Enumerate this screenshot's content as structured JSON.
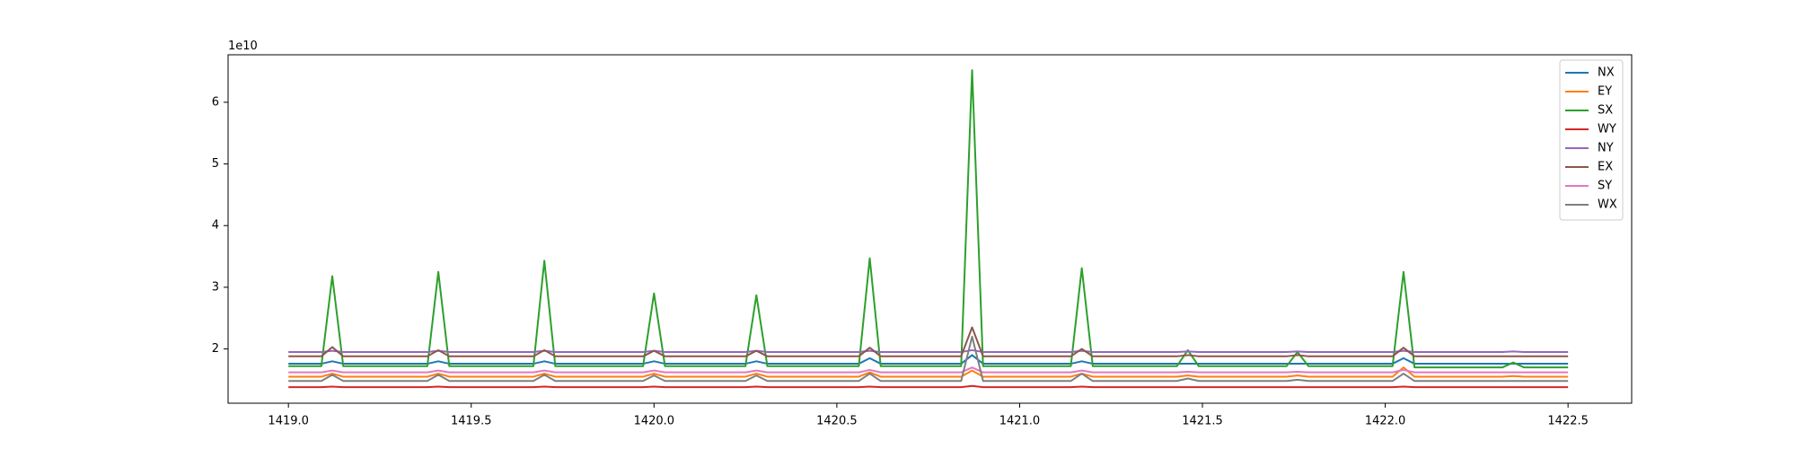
{
  "chart_data": {
    "type": "line",
    "y_offset_label": "1e10",
    "x": [
      1419.0,
      1419.09,
      1419.12,
      1419.15,
      1419.38,
      1419.41,
      1419.44,
      1419.67,
      1419.7,
      1419.73,
      1419.97,
      1420.0,
      1420.03,
      1420.25,
      1420.28,
      1420.31,
      1420.56,
      1420.59,
      1420.62,
      1420.84,
      1420.87,
      1420.9,
      1421.14,
      1421.17,
      1421.2,
      1421.43,
      1421.46,
      1421.49,
      1421.73,
      1421.76,
      1421.79,
      1422.02,
      1422.05,
      1422.08,
      1422.32,
      1422.35,
      1422.38,
      1422.5
    ],
    "series": [
      {
        "name": "NX",
        "color": "#1f77b4",
        "values": [
          1.76,
          1.76,
          1.8,
          1.76,
          1.76,
          1.8,
          1.76,
          1.76,
          1.8,
          1.76,
          1.76,
          1.8,
          1.76,
          1.76,
          1.8,
          1.76,
          1.76,
          1.85,
          1.76,
          1.76,
          1.9,
          1.76,
          1.76,
          1.8,
          1.76,
          1.76,
          1.76,
          1.76,
          1.76,
          1.76,
          1.76,
          1.76,
          1.85,
          1.76,
          1.76,
          1.76,
          1.76,
          1.76
        ]
      },
      {
        "name": "EY",
        "color": "#ff7f0e",
        "values": [
          1.55,
          1.55,
          1.6,
          1.55,
          1.55,
          1.6,
          1.55,
          1.55,
          1.6,
          1.55,
          1.55,
          1.6,
          1.55,
          1.55,
          1.6,
          1.55,
          1.55,
          1.62,
          1.55,
          1.55,
          1.65,
          1.55,
          1.55,
          1.6,
          1.55,
          1.55,
          1.57,
          1.55,
          1.55,
          1.57,
          1.55,
          1.55,
          1.7,
          1.55,
          1.55,
          1.56,
          1.55,
          1.55
        ]
      },
      {
        "name": "SX",
        "color": "#2ca02c",
        "values": [
          1.72,
          1.72,
          3.18,
          1.72,
          1.72,
          3.25,
          1.72,
          1.72,
          3.43,
          1.72,
          1.72,
          2.9,
          1.72,
          1.72,
          2.87,
          1.72,
          1.72,
          3.47,
          1.72,
          1.72,
          6.52,
          1.72,
          1.72,
          3.31,
          1.72,
          1.72,
          1.98,
          1.72,
          1.72,
          1.95,
          1.72,
          1.72,
          3.25,
          1.7,
          1.7,
          1.78,
          1.7,
          1.7
        ]
      },
      {
        "name": "WY",
        "color": "#d62728",
        "values": [
          1.38,
          1.38,
          1.39,
          1.38,
          1.38,
          1.39,
          1.38,
          1.38,
          1.39,
          1.38,
          1.38,
          1.39,
          1.38,
          1.38,
          1.39,
          1.38,
          1.38,
          1.39,
          1.38,
          1.38,
          1.4,
          1.38,
          1.38,
          1.39,
          1.38,
          1.38,
          1.38,
          1.38,
          1.38,
          1.38,
          1.38,
          1.38,
          1.39,
          1.38,
          1.38,
          1.38,
          1.38,
          1.38
        ]
      },
      {
        "name": "NY",
        "color": "#9467bd",
        "values": [
          1.95,
          1.95,
          1.97,
          1.95,
          1.95,
          1.97,
          1.95,
          1.95,
          1.97,
          1.95,
          1.95,
          1.97,
          1.95,
          1.95,
          1.97,
          1.95,
          1.95,
          1.97,
          1.95,
          1.95,
          1.98,
          1.95,
          1.95,
          1.97,
          1.95,
          1.95,
          1.96,
          1.95,
          1.95,
          1.96,
          1.95,
          1.95,
          1.97,
          1.95,
          1.95,
          1.96,
          1.95,
          1.95
        ]
      },
      {
        "name": "EX",
        "color": "#8c564b",
        "values": [
          1.88,
          1.88,
          2.03,
          1.88,
          1.88,
          1.98,
          1.88,
          1.88,
          1.98,
          1.88,
          1.88,
          1.97,
          1.88,
          1.88,
          1.97,
          1.88,
          1.88,
          2.02,
          1.88,
          1.88,
          2.35,
          1.88,
          1.88,
          2.0,
          1.88,
          1.88,
          1.9,
          1.88,
          1.88,
          1.9,
          1.88,
          1.88,
          2.02,
          1.88,
          1.88,
          1.88,
          1.88,
          1.88
        ]
      },
      {
        "name": "SY",
        "color": "#e377c2",
        "values": [
          1.62,
          1.62,
          1.65,
          1.62,
          1.62,
          1.65,
          1.62,
          1.62,
          1.65,
          1.62,
          1.62,
          1.65,
          1.62,
          1.62,
          1.65,
          1.62,
          1.62,
          1.66,
          1.62,
          1.62,
          1.7,
          1.62,
          1.62,
          1.65,
          1.62,
          1.62,
          1.63,
          1.62,
          1.62,
          1.63,
          1.62,
          1.62,
          1.66,
          1.62,
          1.62,
          1.62,
          1.62,
          1.62
        ]
      },
      {
        "name": "WX",
        "color": "#7f7f7f",
        "values": [
          1.48,
          1.48,
          1.58,
          1.48,
          1.48,
          1.58,
          1.48,
          1.48,
          1.58,
          1.48,
          1.48,
          1.57,
          1.48,
          1.48,
          1.57,
          1.48,
          1.48,
          1.6,
          1.48,
          1.48,
          2.2,
          1.48,
          1.48,
          1.6,
          1.48,
          1.48,
          1.52,
          1.48,
          1.48,
          1.5,
          1.48,
          1.48,
          1.6,
          1.48,
          1.48,
          1.48,
          1.48,
          1.48
        ]
      }
    ],
    "xlim": [
      1418.835,
      1422.674
    ],
    "ylim": [
      1.12,
      6.77
    ],
    "xticks": [
      {
        "value": 1419,
        "label": "1419.0"
      },
      1419.5,
      {
        "value": 1420,
        "label": "1420.0"
      },
      1420.5,
      {
        "value": 1421,
        "label": "1421.0"
      },
      1421.5,
      {
        "value": 1422,
        "label": "1422.0"
      },
      1422.5
    ],
    "yticks": [
      2,
      3,
      4,
      5,
      6
    ],
    "grid": false,
    "legend": "upper right"
  }
}
